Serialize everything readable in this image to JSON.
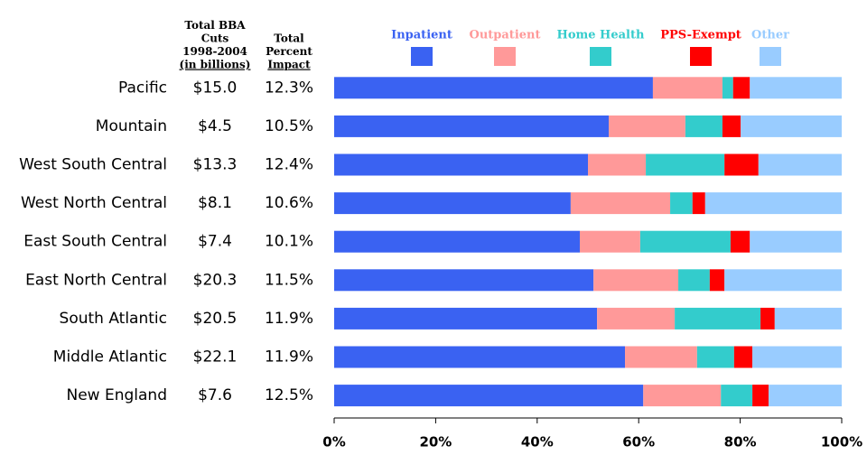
{
  "chart_data": {
    "type": "stacked-bar-horizontal",
    "categories": [
      "Pacific",
      "Mountain",
      "West South Central",
      "West North Central",
      "East South Central",
      "East North Central",
      "South Atlantic",
      "Middle Atlantic",
      "New England"
    ],
    "columns": [
      {
        "header": [
          "Total BBA",
          "Cuts",
          "1998-2004",
          "(in billions)"
        ],
        "values": [
          "$15.0",
          "$4.5",
          "$13.3",
          "$8.1",
          "$7.4",
          "$20.3",
          "$20.5",
          "$22.1",
          "$7.6"
        ]
      },
      {
        "header": [
          "Total",
          "Percent",
          "Impact"
        ],
        "values": [
          "12.3%",
          "10.5%",
          "12.4%",
          "10.6%",
          "10.1%",
          "11.5%",
          "11.9%",
          "11.9%",
          "12.5%"
        ]
      }
    ],
    "series": [
      {
        "name": "Inpatient",
        "color": "#3a62f2",
        "values": [
          62.8,
          54.1,
          50.0,
          46.6,
          48.4,
          51.1,
          51.8,
          57.3,
          60.9
        ]
      },
      {
        "name": "Outpatient",
        "color": "#ff9999",
        "values": [
          13.7,
          15.1,
          11.4,
          19.6,
          11.9,
          16.7,
          15.3,
          14.2,
          15.3
        ]
      },
      {
        "name": "Home Health",
        "color": "#33cccc",
        "values": [
          2.1,
          7.3,
          15.5,
          4.4,
          17.8,
          6.2,
          16.9,
          7.3,
          6.2
        ]
      },
      {
        "name": "PPS-Exempt",
        "color": "#ff0000",
        "values": [
          3.3,
          3.6,
          6.7,
          2.5,
          3.8,
          2.9,
          2.8,
          3.6,
          3.2
        ]
      },
      {
        "name": "Other",
        "color": "#99ccff",
        "values": [
          18.1,
          19.9,
          16.4,
          26.9,
          18.1,
          23.1,
          13.2,
          17.6,
          14.4
        ]
      }
    ],
    "xlim": [
      0,
      100
    ],
    "xticks": [
      {
        "value": 0,
        "label": "0%"
      },
      {
        "value": 20,
        "label": "20%"
      },
      {
        "value": 40,
        "label": "40%"
      },
      {
        "value": 60,
        "label": "60%"
      },
      {
        "value": 80,
        "label": "80%"
      },
      {
        "value": 100,
        "label": "100%"
      }
    ]
  }
}
